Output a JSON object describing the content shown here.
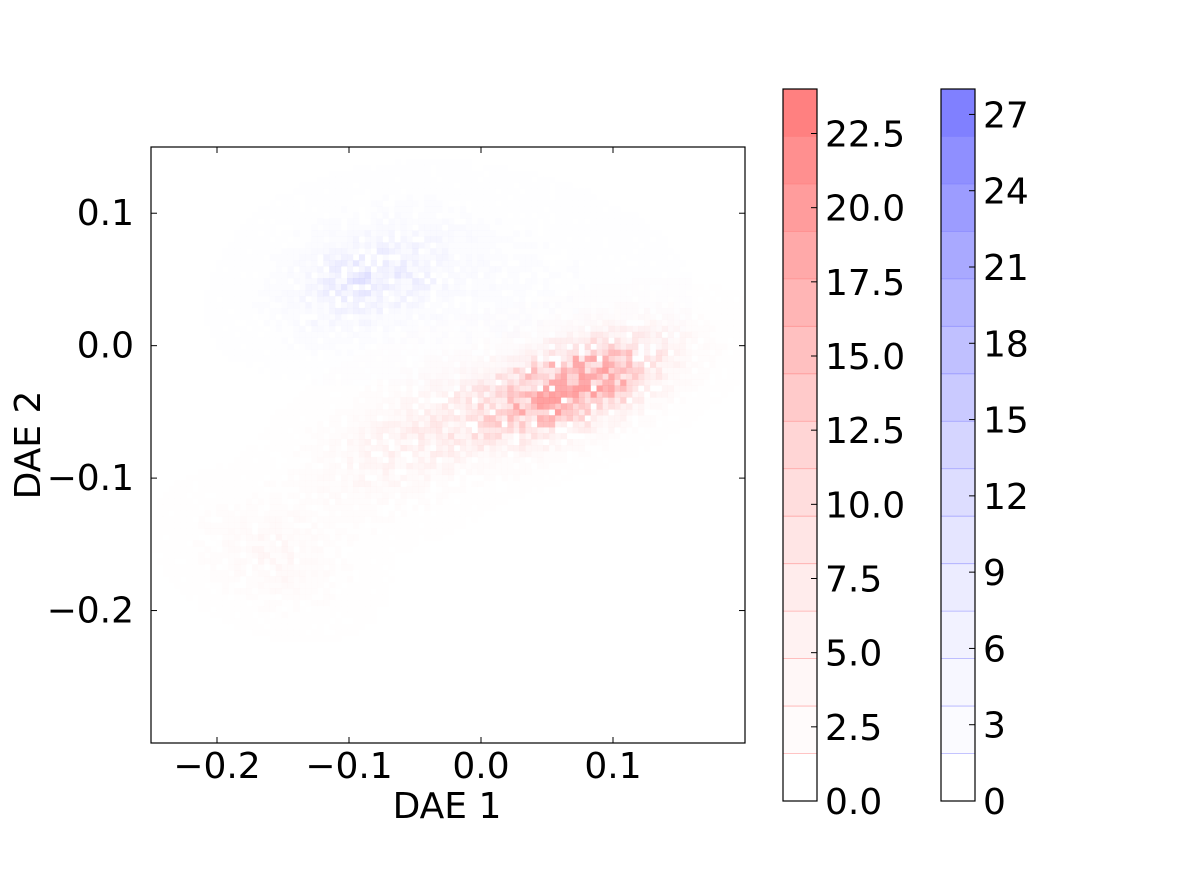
{
  "chart_data": {
    "type": "heatmap",
    "title": "",
    "xlabel": "DAE 1",
    "ylabel": "DAE 2",
    "xlim": [
      -0.25,
      0.2
    ],
    "ylim": [
      -0.3,
      0.15
    ],
    "xticks": [
      -0.2,
      -0.1,
      0.0,
      0.1
    ],
    "xtick_labels": [
      "−0.2",
      "−0.1",
      "0.0",
      "0.1"
    ],
    "yticks": [
      0.1,
      0.0,
      -0.1,
      -0.2
    ],
    "ytick_labels": [
      "0.1",
      "0.0",
      "−0.1",
      "−0.2"
    ],
    "grid": false,
    "series": [
      {
        "color": "#ff8080",
        "colorbar": {
          "min": 0.0,
          "max": 24.0,
          "levels": 15,
          "ticks": [
            0.0,
            2.5,
            5.0,
            7.5,
            10.0,
            12.5,
            15.0,
            17.5,
            20.0,
            22.5
          ],
          "tick_labels": [
            "0.0",
            "2.5",
            "5.0",
            "7.5",
            "10.0",
            "12.5",
            "15.0",
            "17.5",
            "20.0",
            "22.5"
          ]
        },
        "density_clusters": [
          {
            "center": [
              0.07,
              -0.03
            ],
            "spread": [
              0.05,
              0.022
            ],
            "tilt": 0.35,
            "peak": 22
          },
          {
            "center": [
              -0.05,
              -0.07
            ],
            "spread": [
              0.06,
              0.03
            ],
            "tilt": 0.45,
            "peak": 6
          },
          {
            "center": [
              -0.16,
              -0.16
            ],
            "spread": [
              0.025,
              0.04
            ],
            "tilt": 1.2,
            "peak": 4
          }
        ]
      },
      {
        "color": "#8080ff",
        "colorbar": {
          "min": 0,
          "max": 28,
          "levels": 15,
          "ticks": [
            0,
            3,
            6,
            9,
            12,
            15,
            18,
            21,
            24,
            27
          ],
          "tick_labels": [
            "0",
            "3",
            "6",
            "9",
            "12",
            "15",
            "18",
            "21",
            "24",
            "27"
          ]
        },
        "density_clusters": [
          {
            "center": [
              -0.09,
              0.05
            ],
            "spread": [
              0.045,
              0.025
            ],
            "tilt": 0.35,
            "peak": 8
          },
          {
            "center": [
              -0.01,
              0.05
            ],
            "spread": [
              0.08,
              0.04
            ],
            "tilt": -0.1,
            "peak": 2.5
          }
        ]
      }
    ]
  }
}
